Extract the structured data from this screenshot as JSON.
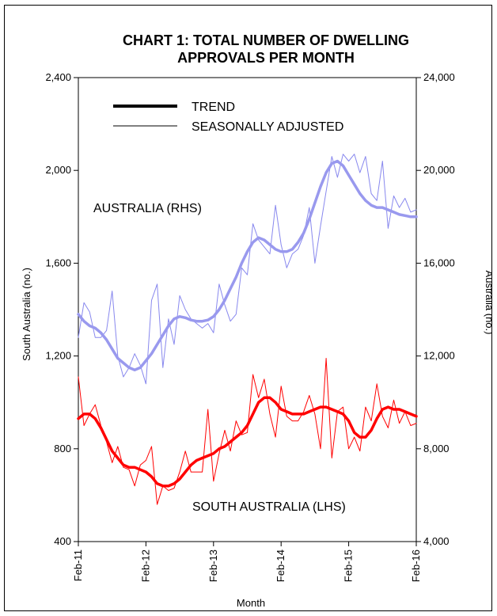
{
  "chart_data": {
    "type": "line",
    "title": "CHART 1: TOTAL NUMBER OF DWELLING APPROVALS PER MONTH",
    "title_lines": [
      "CHART 1: TOTAL NUMBER OF DWELLING",
      "APPROVALS PER MONTH"
    ],
    "xlabel": "Month",
    "ylabel_left": "South Australia (no.)",
    "ylabel_right": "Australia (no.)",
    "ylim_left": [
      400,
      2400
    ],
    "ylim_right": [
      4000,
      24000
    ],
    "yticks_left": [
      "400",
      "800",
      "1,200",
      "1,600",
      "2,000",
      "2,400"
    ],
    "yticks_right": [
      "4,000",
      "8,000",
      "12,000",
      "16,000",
      "20,000",
      "24,000"
    ],
    "x_tick_labels": [
      "Feb-11",
      "Feb-12",
      "Feb-13",
      "Feb-14",
      "Feb-15",
      "Feb-16"
    ],
    "x_range_months": [
      0,
      60
    ],
    "grid": false,
    "legend": [
      {
        "label": "TREND",
        "style": "thick"
      },
      {
        "label": "SEASONALLY ADJUSTED",
        "style": "thin"
      }
    ],
    "annotations": {
      "australia": "AUSTRALIA (RHS)",
      "south_australia": "SOUTH AUSTRALIA (LHS)"
    },
    "series": [
      {
        "name": "South Australia",
        "kind": "seasonally adjusted",
        "axis": "left",
        "color": "#ff0000",
        "values": [
          1110,
          900,
          950,
          990,
          900,
          830,
          740,
          810,
          720,
          710,
          640,
          730,
          750,
          810,
          560,
          640,
          620,
          630,
          700,
          790,
          700,
          700,
          700,
          970,
          660,
          780,
          880,
          790,
          920,
          860,
          870,
          1120,
          1020,
          1100,
          950,
          850,
          1070,
          940,
          920,
          920,
          960,
          1030,
          950,
          800,
          1190,
          760,
          960,
          980,
          800,
          850,
          790,
          980,
          920,
          1080,
          940,
          890,
          1010,
          910,
          960,
          900,
          910
        ]
      },
      {
        "name": "South Australia",
        "kind": "trend",
        "axis": "left",
        "color": "#ff0000",
        "values": [
          930,
          950,
          950,
          930,
          890,
          840,
          790,
          760,
          730,
          720,
          720,
          710,
          700,
          680,
          650,
          640,
          640,
          650,
          670,
          700,
          730,
          750,
          760,
          770,
          780,
          800,
          810,
          830,
          850,
          870,
          900,
          950,
          1000,
          1020,
          1020,
          1000,
          970,
          960,
          950,
          950,
          950,
          960,
          970,
          980,
          980,
          970,
          960,
          950,
          920,
          870,
          850,
          850,
          880,
          930,
          970,
          980,
          970,
          970,
          960,
          950,
          940
        ]
      },
      {
        "name": "Australia",
        "kind": "seasonally adjusted",
        "axis": "right",
        "color": "#8888ee",
        "values": [
          12800,
          14300,
          13900,
          12800,
          12800,
          13100,
          14800,
          12000,
          11100,
          11500,
          12100,
          11600,
          10800,
          14400,
          15100,
          11500,
          13600,
          12500,
          14600,
          14000,
          13600,
          13400,
          13200,
          13400,
          13000,
          15100,
          14200,
          13500,
          13800,
          15800,
          15500,
          17700,
          17000,
          16700,
          16400,
          18500,
          16800,
          15800,
          16400,
          16600,
          17200,
          18400,
          16000,
          17600,
          19100,
          20600,
          19700,
          20700,
          20400,
          20700,
          19900,
          20600,
          19000,
          18700,
          20400,
          17500,
          18900,
          18400,
          18800,
          18200,
          18300
        ]
      },
      {
        "name": "Australia",
        "kind": "trend",
        "axis": "right",
        "color": "#9999ee",
        "values": [
          13800,
          13500,
          13300,
          13200,
          13000,
          12700,
          12300,
          11900,
          11700,
          11500,
          11400,
          11500,
          11800,
          12100,
          12500,
          12900,
          13300,
          13600,
          13700,
          13650,
          13550,
          13500,
          13500,
          13550,
          13700,
          14000,
          14400,
          14900,
          15400,
          16000,
          16500,
          16900,
          17100,
          17000,
          16800,
          16600,
          16500,
          16500,
          16600,
          16900,
          17300,
          17900,
          18600,
          19300,
          19900,
          20300,
          20400,
          20200,
          19800,
          19400,
          19000,
          18700,
          18500,
          18400,
          18400,
          18300,
          18200,
          18100,
          18050,
          18000,
          18000
        ]
      }
    ]
  }
}
